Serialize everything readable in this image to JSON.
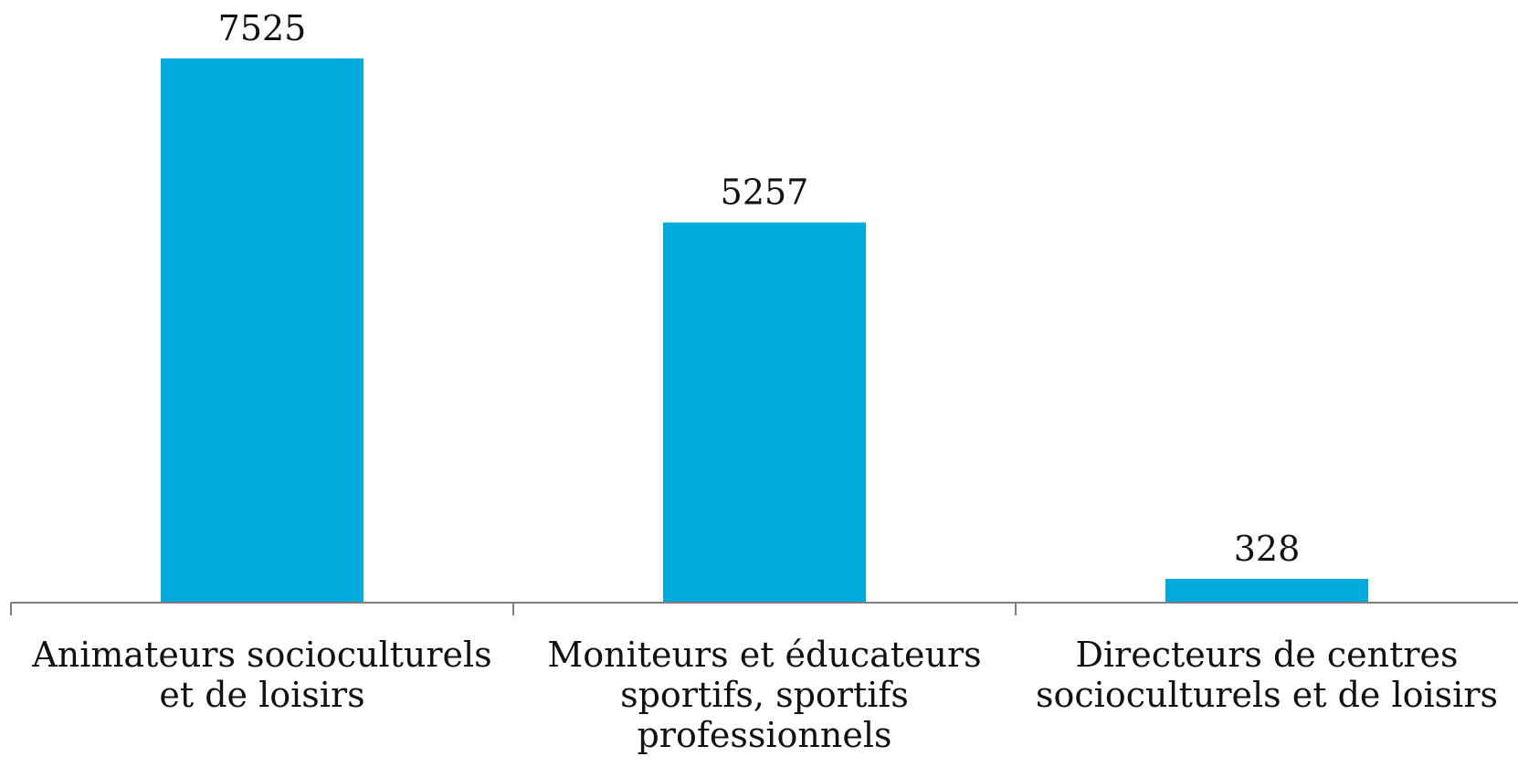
{
  "chart_data": {
    "type": "bar",
    "title": "",
    "xlabel": "",
    "ylabel": "",
    "categories": [
      [
        "Animateurs socioculturels",
        "et de loisirs"
      ],
      [
        "Moniteurs et éducateurs",
        "sportifs, sportifs",
        "professionnels"
      ],
      [
        "Directeurs de centres",
        "socioculturels et de loisirs"
      ]
    ],
    "values": [
      7525,
      5257,
      328
    ],
    "ylim": [
      0,
      7525
    ],
    "grid": false,
    "legend": "none",
    "bar_color": "#00ABDB",
    "axis_color": "#7F7F7F"
  }
}
